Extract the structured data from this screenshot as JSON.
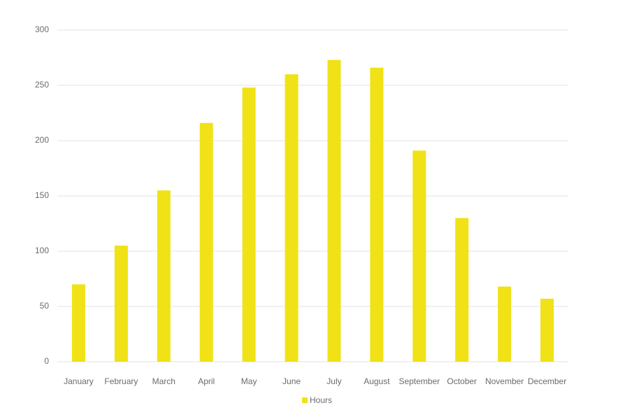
{
  "chart_data": {
    "type": "bar",
    "categories": [
      "January",
      "February",
      "March",
      "April",
      "May",
      "June",
      "July",
      "August",
      "September",
      "October",
      "November",
      "December"
    ],
    "series": [
      {
        "name": "Hours",
        "color": "#f0e216",
        "values": [
          70,
          105,
          155,
          216,
          248,
          260,
          273,
          266,
          191,
          130,
          68,
          57
        ]
      }
    ],
    "ylim": [
      0,
      300
    ],
    "yticks": [
      0,
      50,
      100,
      150,
      200,
      250,
      300
    ],
    "grid": true,
    "legend": "bottom"
  }
}
